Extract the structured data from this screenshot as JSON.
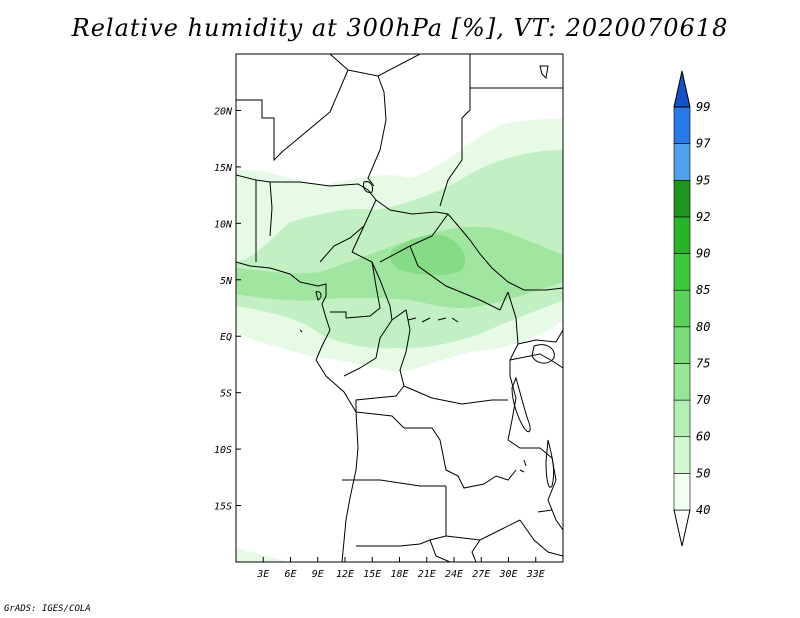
{
  "title": "Relative humidity at 300hPa [%], VT: 2020070618",
  "credit": "GrADS: IGES/COLA",
  "map": {
    "lon_range": [
      0,
      36
    ],
    "lat_range": [
      -20,
      25
    ],
    "lon_ticks": [
      {
        "value": 3,
        "label": "3E"
      },
      {
        "value": 6,
        "label": "6E"
      },
      {
        "value": 9,
        "label": "9E"
      },
      {
        "value": 12,
        "label": "12E"
      },
      {
        "value": 15,
        "label": "15E"
      },
      {
        "value": 18,
        "label": "18E"
      },
      {
        "value": 21,
        "label": "21E"
      },
      {
        "value": 24,
        "label": "24E"
      },
      {
        "value": 27,
        "label": "27E"
      },
      {
        "value": 30,
        "label": "30E"
      },
      {
        "value": 33,
        "label": "33E"
      }
    ],
    "lat_ticks": [
      {
        "value": 20,
        "label": "20N"
      },
      {
        "value": 15,
        "label": "15N"
      },
      {
        "value": 10,
        "label": "10N"
      },
      {
        "value": 5,
        "label": "5N"
      },
      {
        "value": 0,
        "label": "EQ"
      },
      {
        "value": -5,
        "label": "5S"
      },
      {
        "value": -10,
        "label": "10S"
      },
      {
        "value": -15,
        "label": "15S"
      }
    ]
  },
  "colorbar": {
    "levels": [
      "40",
      "50",
      "60",
      "70",
      "75",
      "80",
      "85",
      "90",
      "92",
      "95",
      "97",
      "99"
    ],
    "colors": [
      "#f0fff0",
      "#d2f8d2",
      "#b4f0b4",
      "#96e696",
      "#78dc78",
      "#5ad25a",
      "#3cc83c",
      "#28b428",
      "#1e961e",
      "#50a0f0",
      "#2878e6",
      "#1450c8"
    ]
  },
  "colors": {
    "coast": "#000000",
    "rh_light": "#e6fae6",
    "rh_mid": "#c2f0c2",
    "rh_high": "#a0e6a0",
    "rh_peak": "#86dc86"
  }
}
